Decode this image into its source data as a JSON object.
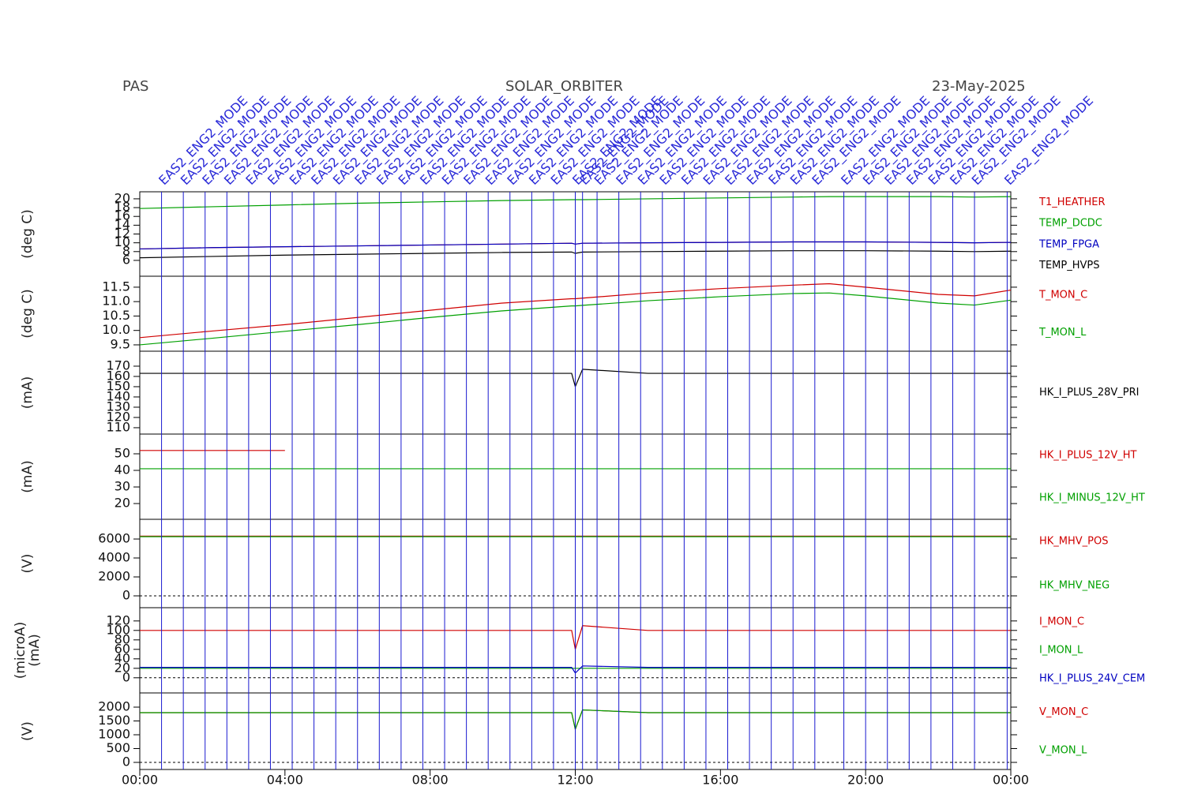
{
  "header": {
    "instrument": "PAS",
    "mission": "SOLAR_ORBITER",
    "date": "23-May-2025"
  },
  "events": [
    {
      "x": 0.6,
      "label": "EAS2_ENG2_MODE"
    },
    {
      "x": 1.2,
      "label": "EAS2_ENG2_MODE"
    },
    {
      "x": 1.8,
      "label": "EAS2_ENG2_MODE"
    },
    {
      "x": 2.4,
      "label": "EAS2_ENG2_MODE"
    },
    {
      "x": 3.0,
      "label": "EAS2_ENG2_MODE"
    },
    {
      "x": 3.6,
      "label": "EAS2_ENG2_MODE"
    },
    {
      "x": 4.2,
      "label": "EAS2_ENG2_MODE"
    },
    {
      "x": 4.8,
      "label": "EAS2_ENG2_MODE"
    },
    {
      "x": 5.4,
      "label": "EAS2_ENG2_MODE"
    },
    {
      "x": 6.0,
      "label": "EAS2_ENG2_MODE"
    },
    {
      "x": 6.6,
      "label": "EAS2_ENG2_MODE"
    },
    {
      "x": 7.2,
      "label": "EAS2_ENG2_MODE"
    },
    {
      "x": 7.8,
      "label": "EAS2_ENG2_MODE"
    },
    {
      "x": 8.4,
      "label": "EAS2_ENG2_MODE"
    },
    {
      "x": 9.0,
      "label": "EAS2_ENG2_MODE"
    },
    {
      "x": 9.6,
      "label": "EAS2_ENG2_MODE"
    },
    {
      "x": 10.2,
      "label": "EAS2_ENG2_MODE"
    },
    {
      "x": 10.8,
      "label": "EAS2_ENG2_MODE"
    },
    {
      "x": 11.4,
      "label": "EAS2_ENG2_MODE"
    },
    {
      "x": 12.0,
      "label": "EAS2_ENG2_MODE"
    },
    {
      "x": 12.2,
      "label": "EAS2_ENG2_MODE"
    },
    {
      "x": 12.6,
      "label": "EAS2_ENG2_MODE"
    },
    {
      "x": 13.2,
      "label": "EAS2_ENG2_MODE"
    },
    {
      "x": 13.8,
      "label": "EAS2_ENG2_MODE"
    },
    {
      "x": 14.4,
      "label": "EAS2_ENG2_MODE"
    },
    {
      "x": 15.0,
      "label": "EAS2_ENG2_MODE"
    },
    {
      "x": 15.6,
      "label": "EAS2_ENG2_MODE"
    },
    {
      "x": 16.2,
      "label": "EAS2_ENG2_MODE"
    },
    {
      "x": 16.8,
      "label": "EAS2_ENG2_MODE"
    },
    {
      "x": 17.4,
      "label": "EAS2_ENG2_MODE"
    },
    {
      "x": 18.0,
      "label": "EAS2_ENG2_MODE"
    },
    {
      "x": 18.6,
      "label": "EAS2_ENG2_MODE"
    },
    {
      "x": 19.4,
      "label": "EAS2_ENG2_MODE"
    },
    {
      "x": 20.0,
      "label": "EAS2_ENG2_MODE"
    },
    {
      "x": 20.6,
      "label": "EAS2_ENG2_MODE"
    },
    {
      "x": 21.2,
      "label": "EAS2_ENG2_MODE"
    },
    {
      "x": 21.8,
      "label": "EAS2_ENG2_MODE"
    },
    {
      "x": 22.4,
      "label": "EAS2_ENG2_MODE"
    },
    {
      "x": 23.0,
      "label": "EAS2_ENG2_MODE"
    },
    {
      "x": 23.9,
      "label": "EAS2_ENG2_MODE"
    }
  ],
  "chart_data": [
    {
      "type": "line",
      "ylabel": [
        "(deg C)"
      ],
      "x": [
        0,
        2,
        4,
        6,
        8,
        10,
        11.9,
        12,
        12.2,
        14,
        16,
        18,
        19,
        20,
        22,
        23,
        24
      ],
      "xlim": [
        0,
        24
      ],
      "ylim": [
        2.4,
        21.6
      ],
      "yticks": [
        6,
        8,
        10,
        12,
        14,
        16,
        18,
        20
      ],
      "zero_line": false,
      "series": [
        {
          "name": "T1_HEATHER",
          "color": "#d00000",
          "values": [
            8.6,
            8.9,
            9.1,
            9.3,
            9.5,
            9.7,
            9.9,
            9.7,
            9.9,
            10,
            10.1,
            10.2,
            10.2,
            10.2,
            10.1,
            10,
            10.1
          ]
        },
        {
          "name": "TEMP_DCDC",
          "color": "#00a000",
          "values": [
            17.8,
            18.2,
            18.6,
            19,
            19.3,
            19.6,
            19.8,
            19.8,
            19.8,
            20,
            20.2,
            20.4,
            20.5,
            20.5,
            20.5,
            20.4,
            20.5
          ]
        },
        {
          "name": "TEMP_FPGA",
          "color": "#0000c0",
          "values": [
            8.6,
            8.9,
            9.1,
            9.3,
            9.5,
            9.7,
            9.9,
            9.7,
            9.9,
            10,
            10.1,
            10.2,
            10.2,
            10.2,
            10.1,
            10,
            10.1
          ]
        },
        {
          "name": "TEMP_HVPS",
          "color": "#000000",
          "values": [
            6.6,
            6.9,
            7.2,
            7.4,
            7.6,
            7.8,
            7.9,
            7.6,
            7.9,
            8.0,
            8.1,
            8.2,
            8.2,
            8.2,
            8.1,
            8.0,
            8.1
          ]
        }
      ]
    },
    {
      "type": "line",
      "ylabel": [
        "(deg C)"
      ],
      "x": [
        0,
        2,
        4,
        6,
        8,
        10,
        11.9,
        12,
        12.2,
        14,
        16,
        18,
        19,
        20,
        22,
        23,
        24
      ],
      "xlim": [
        0,
        24
      ],
      "ylim": [
        9.28,
        11.88
      ],
      "yticks": [
        9.5,
        {
          "value": 10,
          "label": "10.0"
        },
        10.5,
        {
          "value": 11,
          "label": "11.0"
        },
        11.5
      ],
      "zero_line": false,
      "series": [
        {
          "name": "T_MON_C",
          "color": "#d00000",
          "values": [
            9.75,
            9.98,
            10.2,
            10.45,
            10.7,
            10.95,
            11.1,
            11.1,
            11.12,
            11.3,
            11.45,
            11.57,
            11.62,
            11.5,
            11.25,
            11.2,
            11.4
          ]
        },
        {
          "name": "T_MON_L",
          "color": "#00a000",
          "values": [
            9.5,
            9.73,
            9.97,
            10.2,
            10.45,
            10.68,
            10.85,
            10.85,
            10.87,
            11.03,
            11.17,
            11.28,
            11.3,
            11.2,
            10.95,
            10.88,
            11.05
          ]
        }
      ]
    },
    {
      "type": "line",
      "ylabel": [
        "(mA)"
      ],
      "x": [
        0,
        2,
        4,
        6,
        8,
        10,
        11.9,
        12,
        12.2,
        14,
        16,
        18,
        19,
        20,
        22,
        23,
        24
      ],
      "xlim": [
        0,
        24
      ],
      "ylim": [
        103.8,
        184.6
      ],
      "yticks": [
        110,
        120,
        130,
        140,
        150,
        160,
        170
      ],
      "zero_line": false,
      "series": [
        {
          "name": "HK_I_PLUS_28V_PRI",
          "color": "#000000",
          "values": [
            163,
            163,
            163,
            163,
            163,
            163,
            163,
            150,
            167,
            163,
            163,
            163,
            163,
            163,
            163,
            163,
            163
          ]
        }
      ]
    },
    {
      "type": "line",
      "ylabel": [
        "(mA)"
      ],
      "x": [
        0,
        2,
        4,
        6,
        8,
        10,
        11.9,
        12,
        12.2,
        14,
        16,
        18,
        19,
        20,
        22,
        23,
        24
      ],
      "xlim": [
        0,
        24
      ],
      "ylim": [
        10.5,
        61.9
      ],
      "yticks": [
        20,
        30,
        40,
        50
      ],
      "zero_line": false,
      "series": [
        {
          "name": "HK_I_PLUS_12V_HT",
          "color": "#d00000",
          "values": [
            52,
            52,
            52,
            null,
            null,
            null,
            null,
            null,
            null,
            null,
            null,
            null,
            null,
            null,
            null,
            null,
            null
          ]
        },
        {
          "name": "HK_I_MINUS_12V_HT",
          "color": "#00a000",
          "values": [
            41,
            41,
            41,
            41,
            41,
            41,
            41,
            41,
            41,
            41,
            41,
            41,
            41,
            41,
            41,
            41,
            41
          ]
        }
      ]
    },
    {
      "type": "line",
      "ylabel": [
        "(V)"
      ],
      "x": [
        0,
        2,
        4,
        6,
        8,
        10,
        11.9,
        12,
        12.2,
        14,
        16,
        18,
        19,
        20,
        22,
        23,
        24
      ],
      "xlim": [
        0,
        24
      ],
      "ylim": [
        -1250,
        8083
      ],
      "yticks": [
        0,
        2000,
        4000,
        6000
      ],
      "zero_line": true,
      "series": [
        {
          "name": "HK_MHV_POS",
          "color": "#d00000",
          "values": [
            6300,
            6300,
            6300,
            6300,
            6300,
            6300,
            6300,
            6300,
            6300,
            6300,
            6300,
            6300,
            6300,
            6300,
            6300,
            6300,
            6300
          ]
        },
        {
          "name": "HK_MHV_NEG",
          "color": "#00a000",
          "values": [
            6250,
            6250,
            6250,
            6250,
            6250,
            6250,
            6250,
            6250,
            6250,
            6250,
            6250,
            6250,
            6250,
            6250,
            6250,
            6250,
            6250
          ]
        }
      ]
    },
    {
      "type": "line",
      "ylabel": [
        "(microA)",
        "(mA)"
      ],
      "x": [
        0,
        2,
        4,
        6,
        8,
        10,
        11.9,
        12,
        12.2,
        14,
        16,
        18,
        19,
        20,
        22,
        23,
        24
      ],
      "xlim": [
        0,
        24
      ],
      "ylim": [
        -32,
        148
      ],
      "yticks": [
        0,
        20,
        40,
        60,
        80,
        100,
        120
      ],
      "zero_line": true,
      "series": [
        {
          "name": "I_MON_C",
          "color": "#d00000",
          "values": [
            100,
            100,
            100,
            100,
            100,
            100,
            100,
            60,
            110,
            100,
            100,
            100,
            100,
            100,
            100,
            100,
            100
          ]
        },
        {
          "name": "I_MON_L",
          "color": "#00a000",
          "values": [
            20,
            20,
            20,
            20,
            20,
            20,
            20,
            20,
            20,
            20,
            20,
            20,
            20,
            20,
            20,
            20,
            20
          ]
        },
        {
          "name": "HK_I_PLUS_24V_CEM",
          "color": "#0000c0",
          "values": [
            22,
            22,
            22,
            22,
            22,
            22,
            22,
            10,
            25,
            22,
            22,
            22,
            22,
            22,
            22,
            22,
            22
          ]
        }
      ]
    },
    {
      "type": "line",
      "ylabel": [
        "(V)"
      ],
      "x": [
        0,
        2,
        4,
        6,
        8,
        10,
        11.9,
        12,
        12.2,
        14,
        16,
        18,
        19,
        20,
        22,
        23,
        24
      ],
      "xlim": [
        0,
        24
      ],
      "ylim": [
        -257,
        2514
      ],
      "yticks": [
        0,
        500,
        1000,
        1500,
        2000
      ],
      "zero_line": true,
      "xticks": [
        {
          "value": 0,
          "label": "00:00"
        },
        {
          "value": 4,
          "label": "04:00"
        },
        {
          "value": 8,
          "label": "08:00"
        },
        {
          "value": 12,
          "label": "12:00"
        },
        {
          "value": 16,
          "label": "16:00"
        },
        {
          "value": 20,
          "label": "20:00"
        },
        {
          "value": 24,
          "label": "00:00"
        }
      ],
      "series": [
        {
          "name": "V_MON_C",
          "color": "#d00000",
          "values": [
            1800,
            1800,
            1800,
            1800,
            1800,
            1800,
            1800,
            1200,
            1900,
            1800,
            1800,
            1800,
            1800,
            1800,
            1800,
            1800,
            1800
          ]
        },
        {
          "name": "V_MON_L",
          "color": "#00a000",
          "values": [
            1800,
            1800,
            1800,
            1800,
            1800,
            1800,
            1800,
            1200,
            1900,
            1800,
            1800,
            1800,
            1800,
            1800,
            1800,
            1800,
            1800
          ]
        }
      ]
    }
  ]
}
